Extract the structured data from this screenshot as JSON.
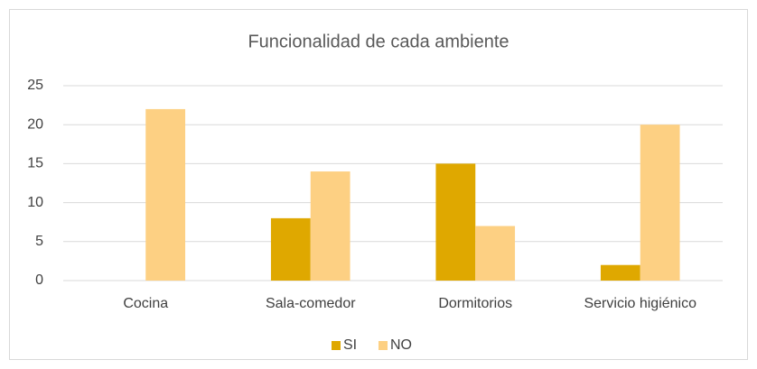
{
  "chart_data": {
    "type": "bar",
    "title": "Funcionalidad de cada ambiente",
    "categories": [
      "Cocina",
      "Sala-comedor",
      "Dormitorios",
      "Servicio higiénico"
    ],
    "series": [
      {
        "name": "SI",
        "color": "#dfa800",
        "values": [
          0,
          8,
          15,
          2
        ]
      },
      {
        "name": "NO",
        "color": "#fdd083",
        "values": [
          22,
          14,
          7,
          20
        ]
      }
    ],
    "ylim": [
      0,
      25
    ],
    "yticks": [
      0,
      5,
      10,
      15,
      20,
      25
    ],
    "grid": true,
    "legend": "bottom"
  }
}
